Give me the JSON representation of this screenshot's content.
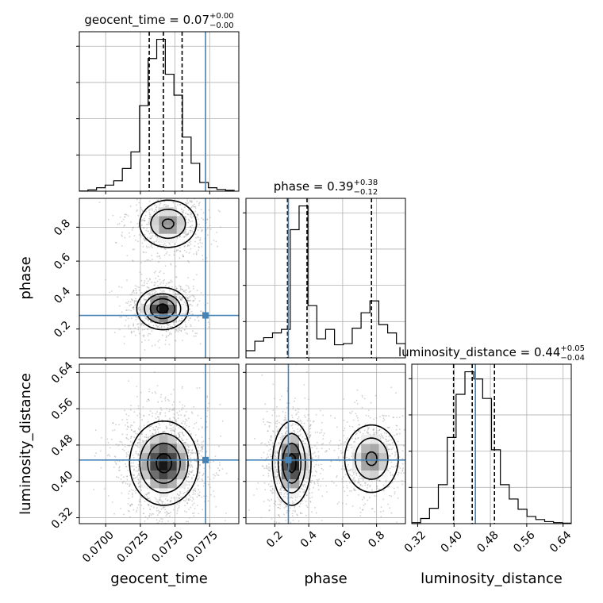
{
  "chart_data": {
    "type": "corner",
    "parameters": [
      "geocent_time",
      "phase",
      "luminosity_distance"
    ],
    "axis_labels": {
      "geocent_time": "geocent_time",
      "phase": "phase",
      "luminosity_distance": "luminosity_distance"
    },
    "ranges": {
      "geocent_time": [
        0.0681,
        0.0796
      ],
      "phase": [
        0.03,
        0.97
      ],
      "luminosity_distance": [
        0.307,
        0.658
      ]
    },
    "ticks": {
      "geocent_time": [
        "0.0700",
        "0.0725",
        "0.0750",
        "0.0775"
      ],
      "phase": [
        "0.2",
        "0.4",
        "0.6",
        "0.8"
      ],
      "luminosity_distance": [
        "0.32",
        "0.40",
        "0.48",
        "0.56",
        "0.64"
      ]
    },
    "titles": [
      {
        "param": "geocent_time",
        "prefix": "geocent_time = 0.07",
        "sup": "+0.00",
        "sub": "−0.00"
      },
      {
        "param": "phase",
        "prefix": "phase = 0.39",
        "sup": "+0.38",
        "sub": "−0.12"
      },
      {
        "param": "luminosity_distance",
        "prefix": "luminosity_distance = 0.44",
        "sup": "+0.05",
        "sub": "−0.04"
      }
    ],
    "truths": {
      "geocent_time": 0.0772,
      "phase": 0.28,
      "luminosity_distance": 0.447
    },
    "quantiles": {
      "geocent_time": [
        0.07314,
        0.07416,
        0.07551
      ],
      "phase": [
        0.275,
        0.39,
        0.77
      ],
      "luminosity_distance": [
        0.399,
        0.44,
        0.489
      ]
    },
    "histograms": {
      "geocent_time": {
        "edges": [
          0.0681,
          0.06872,
          0.06934,
          0.06996,
          0.07058,
          0.0712,
          0.07182,
          0.07244,
          0.07306,
          0.07368,
          0.0743,
          0.07492,
          0.07554,
          0.07616,
          0.07678,
          0.0774,
          0.07802,
          0.07864,
          0.07926
        ],
        "counts": [
          0.3,
          1.5,
          4,
          7,
          12,
          26,
          45,
          98,
          152,
          174,
          134,
          110,
          62,
          32,
          10,
          4,
          2,
          1
        ]
      },
      "phase": {
        "edges": [
          0.03,
          0.0822,
          0.1344,
          0.1866,
          0.2388,
          0.291,
          0.3432,
          0.3954,
          0.4476,
          0.4998,
          0.552,
          0.6042,
          0.6564,
          0.7086,
          0.7608,
          0.813,
          0.8652,
          0.917,
          0.97
        ],
        "counts": [
          6,
          14,
          17,
          21,
          24,
          108,
          128,
          44,
          16,
          24,
          11,
          12,
          25,
          38,
          48,
          28,
          21,
          12
        ]
      },
      "luminosity_distance": {
        "edges": [
          0.307,
          0.3265,
          0.346,
          0.3655,
          0.385,
          0.4045,
          0.424,
          0.4435,
          0.463,
          0.4825,
          0.502,
          0.5215,
          0.541,
          0.5605,
          0.58,
          0.5995,
          0.619,
          0.6385,
          0.658
        ],
        "counts": [
          1,
          5,
          15,
          38,
          84,
          126,
          148,
          141,
          122,
          72,
          38,
          24,
          14,
          7,
          4,
          2,
          1,
          0.5
        ]
      }
    },
    "density_modes": [
      {
        "pair": [
          "geocent_time",
          "phase"
        ],
        "components": [
          {
            "mean": [
              0.0741,
              0.32
            ],
            "sd": [
              0.0009,
              0.06
            ],
            "weight": 0.6
          },
          {
            "mean": [
              0.0745,
              0.82
            ],
            "sd": [
              0.0011,
              0.075
            ],
            "weight": 0.4
          }
        ]
      },
      {
        "pair": [
          "geocent_time",
          "luminosity_distance"
        ],
        "components": [
          {
            "mean": [
              0.0742,
              0.44
            ],
            "sd": [
              0.0012,
              0.045
            ],
            "weight": 1.0
          }
        ]
      },
      {
        "pair": [
          "phase",
          "luminosity_distance"
        ],
        "components": [
          {
            "mean": [
              0.3,
              0.44
            ],
            "sd": [
              0.055,
              0.045
            ],
            "weight": 0.6
          },
          {
            "mean": [
              0.77,
              0.45
            ],
            "sd": [
              0.085,
              0.04
            ],
            "weight": 0.4
          }
        ]
      }
    ],
    "grid": true,
    "colors": {
      "truth": "#4682b4",
      "hist": "#000000",
      "contour": "#000000",
      "grid": "#b0b0b0",
      "scatter": "#9a9a9a"
    }
  }
}
